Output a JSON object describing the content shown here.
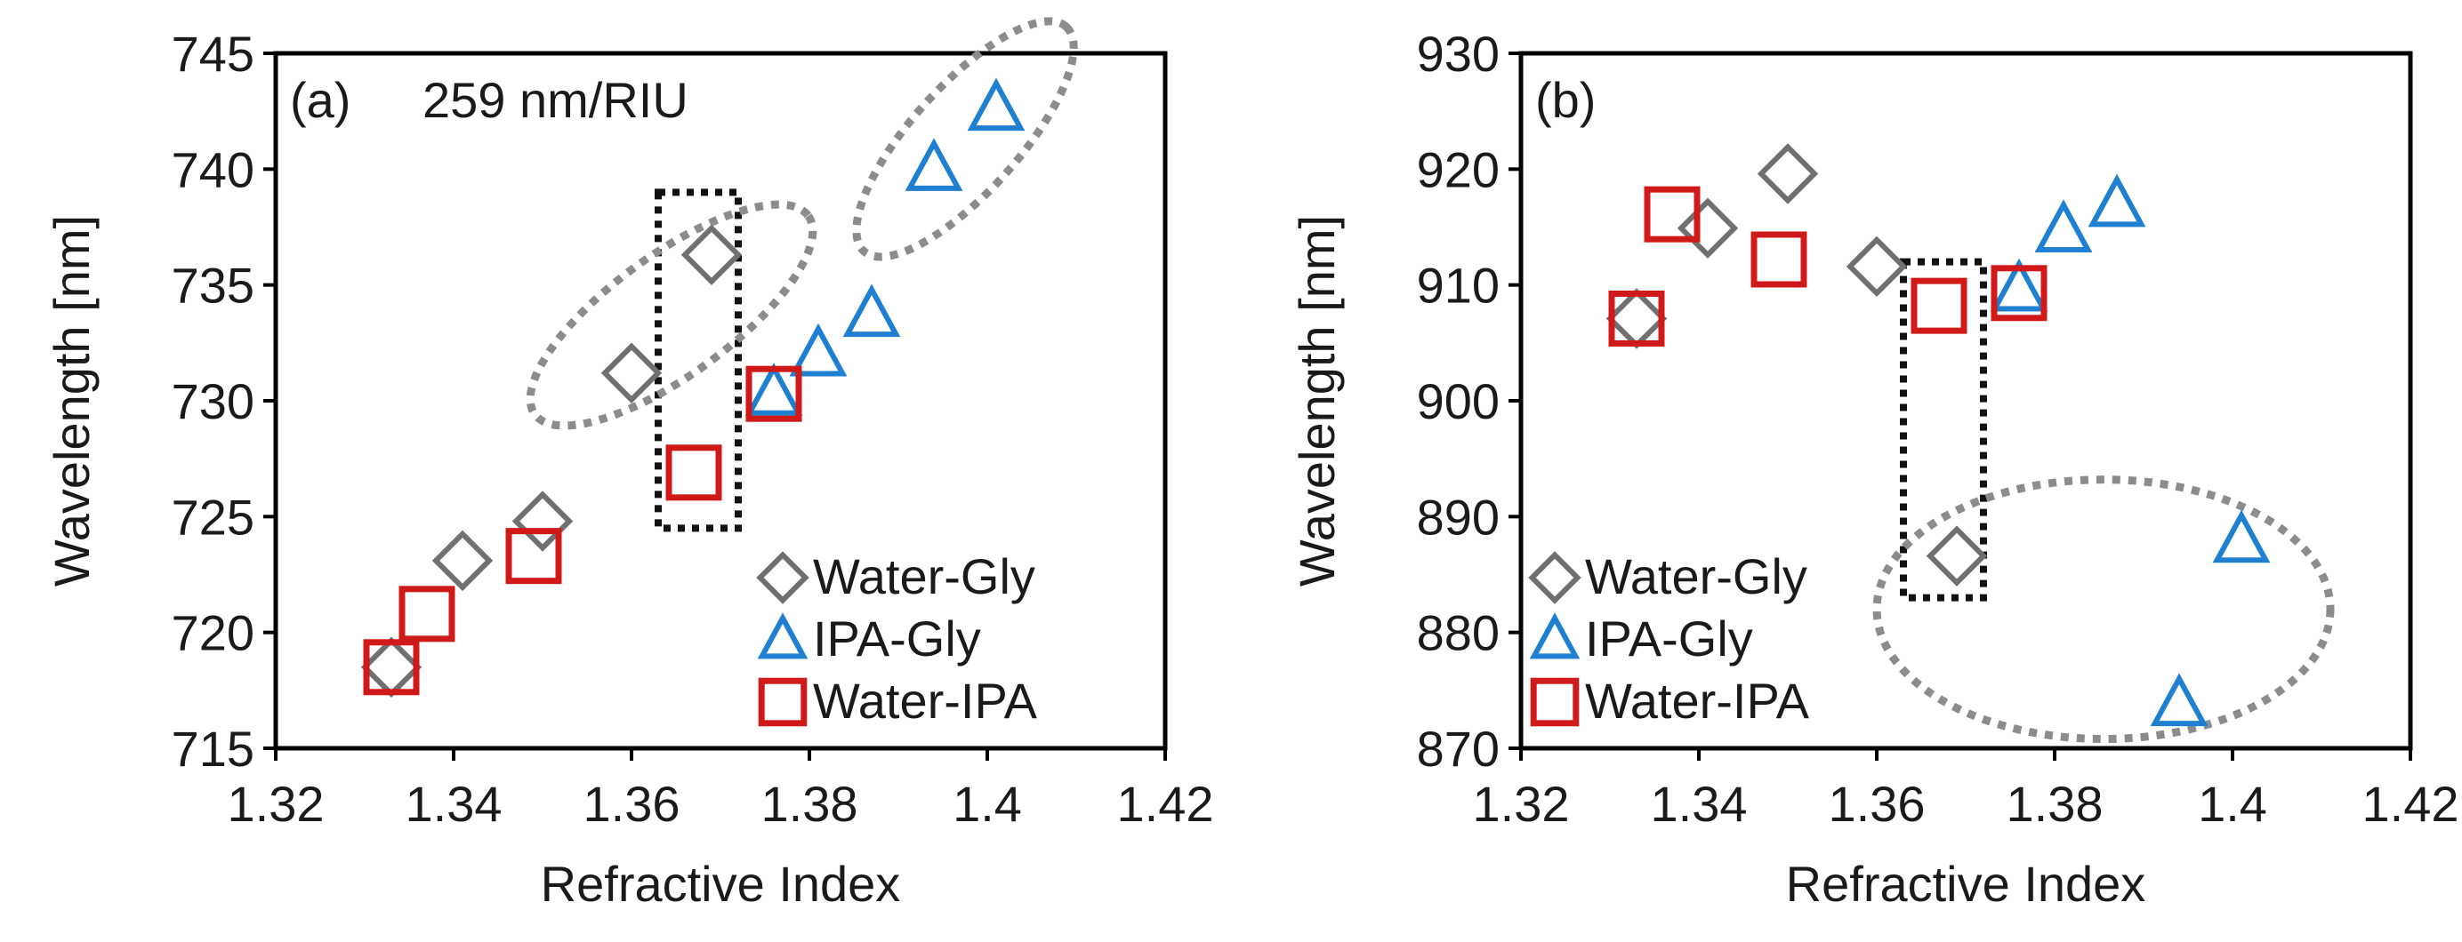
{
  "chart_data": [
    {
      "type": "scatter",
      "panel_label": "(a)",
      "annotation": "259 nm/RIU",
      "xlabel": "Refractive Index",
      "ylabel": "Wavelength [nm]",
      "xlim": [
        1.32,
        1.42
      ],
      "ylim": [
        715,
        745
      ],
      "xticks": [
        1.32,
        1.34,
        1.36,
        1.38,
        1.4,
        1.42
      ],
      "yticks": [
        715,
        720,
        725,
        730,
        735,
        740,
        745
      ],
      "xtick_labels": [
        "1.32",
        "1.34",
        "1.36",
        "1.38",
        "1.4",
        "1.42"
      ],
      "ytick_labels": [
        "715",
        "720",
        "725",
        "730",
        "735",
        "740",
        "745"
      ],
      "legend_position": "bottom-right",
      "series": [
        {
          "name": "Water-Gly",
          "marker": "diamond",
          "color": "#707070",
          "points": [
            [
              1.333,
              718.5
            ],
            [
              1.341,
              723.1
            ],
            [
              1.35,
              724.8
            ],
            [
              1.36,
              731.2
            ],
            [
              1.369,
              736.3
            ]
          ]
        },
        {
          "name": "IPA-Gly",
          "marker": "triangle",
          "color": "#1f7fd0",
          "points": [
            [
              1.376,
              730.3
            ],
            [
              1.381,
              732.0
            ],
            [
              1.387,
              733.7
            ],
            [
              1.394,
              740.0
            ],
            [
              1.401,
              742.6
            ]
          ]
        },
        {
          "name": "Water-IPA",
          "marker": "square",
          "color": "#d01919",
          "points": [
            [
              1.333,
              718.5
            ],
            [
              1.337,
              720.8
            ],
            [
              1.349,
              723.3
            ],
            [
              1.367,
              726.9
            ],
            [
              1.376,
              730.3
            ]
          ]
        }
      ],
      "highlights": [
        {
          "shape": "rect",
          "x0": 1.363,
          "x1": 1.372,
          "y0": 724.5,
          "y1": 739.0
        },
        {
          "shape": "ellipse",
          "cx": 1.3645,
          "cy": 733.7,
          "rx": 0.019,
          "ry": 2.6,
          "angle": -36
        },
        {
          "shape": "ellipse",
          "cx": 1.3975,
          "cy": 741.3,
          "rx": 0.017,
          "ry": 2.3,
          "angle": -48
        }
      ]
    },
    {
      "type": "scatter",
      "panel_label": "(b)",
      "xlabel": "Refractive Index",
      "ylabel": "Wavelength [nm]",
      "xlim": [
        1.32,
        1.42
      ],
      "ylim": [
        870,
        930
      ],
      "xticks": [
        1.32,
        1.34,
        1.36,
        1.38,
        1.4,
        1.42
      ],
      "yticks": [
        870,
        880,
        890,
        900,
        910,
        920,
        930
      ],
      "xtick_labels": [
        "1.32",
        "1.34",
        "1.36",
        "1.38",
        "1.4",
        "1.42"
      ],
      "ytick_labels": [
        "870",
        "880",
        "890",
        "900",
        "910",
        "920",
        "930"
      ],
      "legend_position": "bottom-left",
      "series": [
        {
          "name": "Water-Gly",
          "marker": "diamond",
          "color": "#707070",
          "points": [
            [
              1.333,
              907.1
            ],
            [
              1.341,
              914.9
            ],
            [
              1.35,
              919.6
            ],
            [
              1.36,
              911.6
            ],
            [
              1.369,
              886.6
            ]
          ]
        },
        {
          "name": "IPA-Gly",
          "marker": "triangle",
          "color": "#1f7fd0",
          "points": [
            [
              1.376,
              909.6
            ],
            [
              1.381,
              914.7
            ],
            [
              1.387,
              916.9
            ],
            [
              1.394,
              873.8
            ],
            [
              1.401,
              887.9
            ]
          ]
        },
        {
          "name": "Water-IPA",
          "marker": "square",
          "color": "#d01919",
          "points": [
            [
              1.333,
              907.1
            ],
            [
              1.337,
              916.1
            ],
            [
              1.349,
              912.2
            ],
            [
              1.367,
              908.2
            ],
            [
              1.376,
              909.3
            ]
          ]
        }
      ],
      "highlights": [
        {
          "shape": "rect",
          "x0": 1.363,
          "x1": 1.372,
          "y0": 883.0,
          "y1": 912.0
        },
        {
          "shape": "ellipse",
          "cx": 1.3855,
          "cy": 882.0,
          "rx": 0.0255,
          "ry": 11.2,
          "angle": 0
        }
      ]
    }
  ]
}
